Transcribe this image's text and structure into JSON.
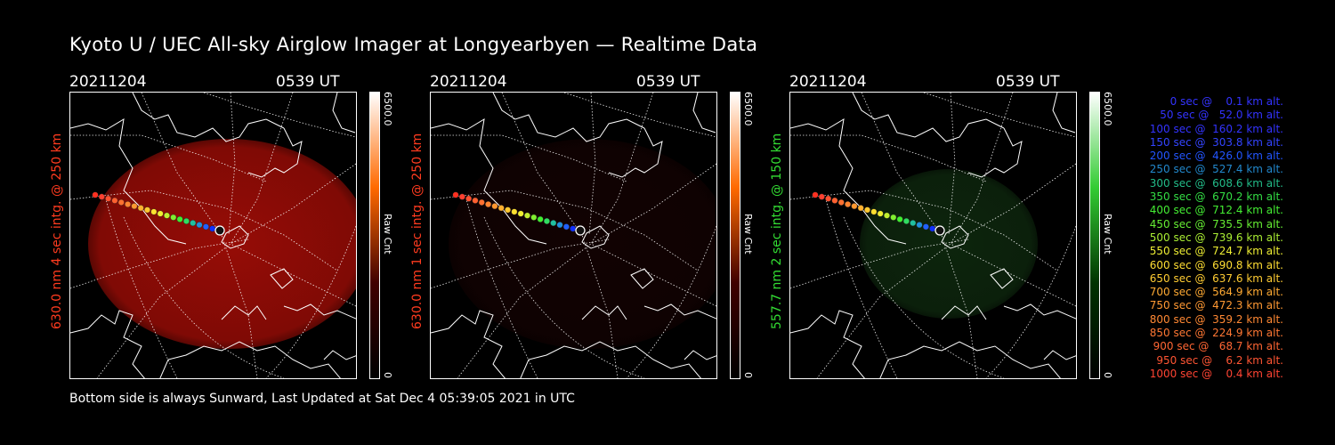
{
  "title": "Kyoto U / UEC All-sky Airglow Imager at Longyearbyen — Realtime Data",
  "footer": "Bottom side is always Sunward, Last Updated at Sat Dec  4 05:39:05 2021 in UTC",
  "panels": [
    {
      "date": "20211204",
      "time": "0539 UT",
      "ylabel": "630.0 nm 4 sec intg. @ 250 km",
      "label_color": "#ff3b1f",
      "cbar_max": "6500.0",
      "cbar_min": "0",
      "cbar_unit": "Raw Cnt",
      "tint": "#c81008",
      "brightness": 0.75,
      "cbar_colors": [
        "#ffffff",
        "#ff6a00",
        "#400000",
        "#000000"
      ]
    },
    {
      "date": "20211204",
      "time": "0539 UT",
      "ylabel": "630.0 nm 1 sec intg. @ 250 km",
      "label_color": "#ff3b1f",
      "cbar_max": "6500.0",
      "cbar_min": "0",
      "cbar_unit": "Raw Cnt",
      "tint": "#3a0606",
      "brightness": 0.3,
      "cbar_colors": [
        "#ffffff",
        "#ff6a00",
        "#400000",
        "#000000"
      ]
    },
    {
      "date": "20211204",
      "time": "0539 UT",
      "ylabel": "557.7 nm 2 sec intg. @ 150 km",
      "label_color": "#33dd33",
      "cbar_max": "6500.0",
      "cbar_min": "0",
      "cbar_unit": "Raw Cnt",
      "tint": "#1a4a1a",
      "brightness": 0.5,
      "cbar_colors": [
        "#ffffff",
        "#33cc33",
        "#003300",
        "#000000"
      ]
    }
  ],
  "legend": [
    {
      "text": "   0 sec @    0.1 km alt.",
      "color": "#3333ff"
    },
    {
      "text": "  50 sec @   52.0 km alt.",
      "color": "#3333ff"
    },
    {
      "text": " 100 sec @  160.2 km alt.",
      "color": "#3333ff"
    },
    {
      "text": " 150 sec @  303.8 km alt.",
      "color": "#3344ff"
    },
    {
      "text": " 200 sec @  426.0 km alt.",
      "color": "#2255ff"
    },
    {
      "text": " 250 sec @  527.4 km alt.",
      "color": "#2288cc"
    },
    {
      "text": " 300 sec @  608.6 km alt.",
      "color": "#22bb88"
    },
    {
      "text": " 350 sec @  670.2 km alt.",
      "color": "#33dd44"
    },
    {
      "text": " 400 sec @  712.4 km alt.",
      "color": "#44ee33"
    },
    {
      "text": " 450 sec @  735.5 km alt.",
      "color": "#66ee33"
    },
    {
      "text": " 500 sec @  739.6 km alt.",
      "color": "#aaee33"
    },
    {
      "text": " 550 sec @  724.7 km alt.",
      "color": "#eeee33"
    },
    {
      "text": " 600 sec @  690.8 km alt.",
      "color": "#ffdd33"
    },
    {
      "text": " 650 sec @  637.6 km alt.",
      "color": "#ffcc33"
    },
    {
      "text": " 700 sec @  564.9 km alt.",
      "color": "#ffaa33"
    },
    {
      "text": " 750 sec @  472.3 km alt.",
      "color": "#ff9933"
    },
    {
      "text": " 800 sec @  359.2 km alt.",
      "color": "#ff8833"
    },
    {
      "text": " 850 sec @  224.9 km alt.",
      "color": "#ff7733"
    },
    {
      "text": " 900 sec @   68.7 km alt.",
      "color": "#ff6633"
    },
    {
      "text": " 950 sec @    6.2 km alt.",
      "color": "#ff5533"
    },
    {
      "text": "1000 sec @    0.4 km alt.",
      "color": "#ff4433"
    }
  ],
  "track_colors": [
    "#0000aa",
    "#1030ff",
    "#2060ff",
    "#2090dd",
    "#20c0a0",
    "#30dd60",
    "#40ee30",
    "#80ee30",
    "#c0ee30",
    "#eeee30",
    "#ffe030",
    "#ffc830",
    "#ffb030",
    "#ff9830",
    "#ff8430",
    "#ff7030",
    "#ff6030",
    "#ff5030",
    "#ff4030",
    "#ff3020"
  ]
}
